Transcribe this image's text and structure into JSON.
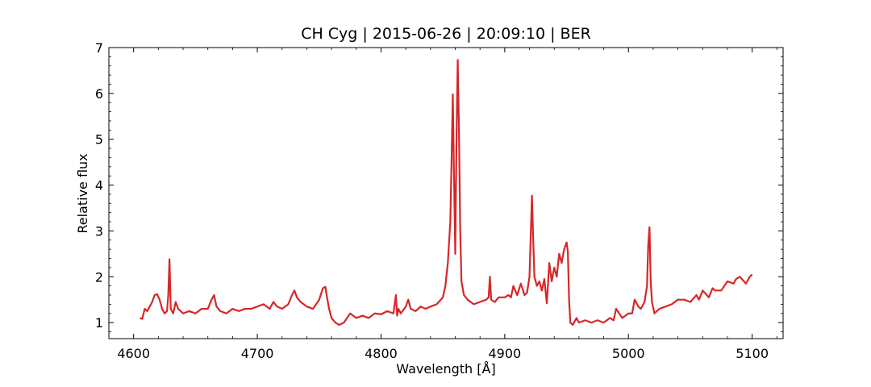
{
  "chart_data": {
    "type": "line",
    "title": "CH Cyg | 2015-06-26 | 20:09:10 | BER",
    "xlabel": "Wavelength [Å]",
    "ylabel": "Relative flux",
    "xlim": [
      4580,
      5125
    ],
    "ylim": [
      0.65,
      7
    ],
    "xticks": [
      4600,
      4700,
      4800,
      4900,
      5000,
      5100
    ],
    "yticks": [
      1,
      2,
      3,
      4,
      5,
      6,
      7
    ],
    "xminor_step": 20,
    "yminor_step": 0.2,
    "grid": false,
    "legend": "none",
    "series": [
      {
        "color": "#d62728",
        "x": [
          4605,
          4607,
          4609,
          4611,
          4613,
          4615,
          4617,
          4619,
          4621,
          4623,
          4625,
          4627,
          4628,
          4629,
          4630,
          4632,
          4634,
          4636,
          4640,
          4645,
          4650,
          4655,
          4660,
          4663,
          4665,
          4667,
          4670,
          4675,
          4680,
          4685,
          4690,
          4695,
          4700,
          4705,
          4710,
          4713,
          4716,
          4720,
          4725,
          4728,
          4730,
          4732,
          4735,
          4740,
          4745,
          4750,
          4753,
          4755,
          4756,
          4758,
          4760,
          4763,
          4766,
          4770,
          4775,
          4780,
          4785,
          4790,
          4795,
          4800,
          4805,
          4810,
          4812,
          4813,
          4814,
          4816,
          4820,
          4822,
          4824,
          4828,
          4832,
          4836,
          4840,
          4845,
          4850,
          4852,
          4854,
          4856,
          4857,
          4858,
          4859,
          4860,
          4861,
          4862,
          4863,
          4864,
          4865,
          4867,
          4870,
          4875,
          4880,
          4885,
          4887,
          4888,
          4889,
          4892,
          4895,
          4900,
          4903,
          4905,
          4907,
          4910,
          4913,
          4916,
          4918,
          4920,
          4921,
          4922,
          4923,
          4924,
          4926,
          4928,
          4930,
          4932,
          4934,
          4936,
          4938,
          4940,
          4942,
          4944,
          4946,
          4948,
          4950,
          4951,
          4952,
          4953,
          4955,
          4958,
          4960,
          4965,
          4970,
          4975,
          4980,
          4985,
          4988,
          4990,
          4995,
          5000,
          5003,
          5005,
          5008,
          5010,
          5013,
          5015,
          5016,
          5017,
          5018,
          5019,
          5021,
          5025,
          5030,
          5035,
          5040,
          5045,
          5050,
          5055,
          5057,
          5060,
          5065,
          5068,
          5070,
          5075,
          5080,
          5085,
          5087,
          5090,
          5095,
          5098,
          5100
        ],
        "y": [
          1.1,
          1.08,
          1.3,
          1.25,
          1.35,
          1.45,
          1.6,
          1.62,
          1.5,
          1.3,
          1.2,
          1.25,
          1.6,
          2.38,
          1.3,
          1.2,
          1.45,
          1.3,
          1.2,
          1.25,
          1.2,
          1.3,
          1.3,
          1.5,
          1.6,
          1.35,
          1.25,
          1.2,
          1.3,
          1.25,
          1.3,
          1.3,
          1.35,
          1.4,
          1.3,
          1.45,
          1.35,
          1.3,
          1.4,
          1.6,
          1.7,
          1.55,
          1.45,
          1.35,
          1.3,
          1.5,
          1.75,
          1.78,
          1.6,
          1.3,
          1.1,
          1.0,
          0.95,
          1.0,
          1.2,
          1.1,
          1.15,
          1.1,
          1.2,
          1.18,
          1.25,
          1.2,
          1.6,
          1.15,
          1.3,
          1.2,
          1.35,
          1.5,
          1.3,
          1.25,
          1.35,
          1.3,
          1.35,
          1.4,
          1.55,
          1.8,
          2.3,
          3.2,
          4.5,
          5.98,
          4.2,
          2.5,
          5.0,
          6.73,
          5.2,
          3.0,
          1.9,
          1.6,
          1.5,
          1.4,
          1.45,
          1.5,
          1.55,
          2.0,
          1.5,
          1.45,
          1.55,
          1.55,
          1.6,
          1.55,
          1.8,
          1.6,
          1.85,
          1.6,
          1.65,
          2.0,
          2.9,
          3.77,
          2.8,
          2.0,
          1.8,
          1.9,
          1.7,
          1.95,
          1.42,
          2.3,
          1.9,
          2.2,
          2.0,
          2.5,
          2.3,
          2.6,
          2.75,
          2.55,
          1.5,
          1.0,
          0.95,
          1.1,
          1.0,
          1.05,
          1.0,
          1.05,
          1.0,
          1.1,
          1.05,
          1.3,
          1.1,
          1.2,
          1.2,
          1.5,
          1.35,
          1.3,
          1.45,
          1.8,
          2.7,
          3.08,
          1.9,
          1.45,
          1.2,
          1.3,
          1.35,
          1.4,
          1.5,
          1.5,
          1.45,
          1.6,
          1.5,
          1.7,
          1.55,
          1.75,
          1.7,
          1.7,
          1.9,
          1.85,
          1.95,
          2.0,
          1.85,
          2.0,
          2.05
        ]
      }
    ]
  }
}
